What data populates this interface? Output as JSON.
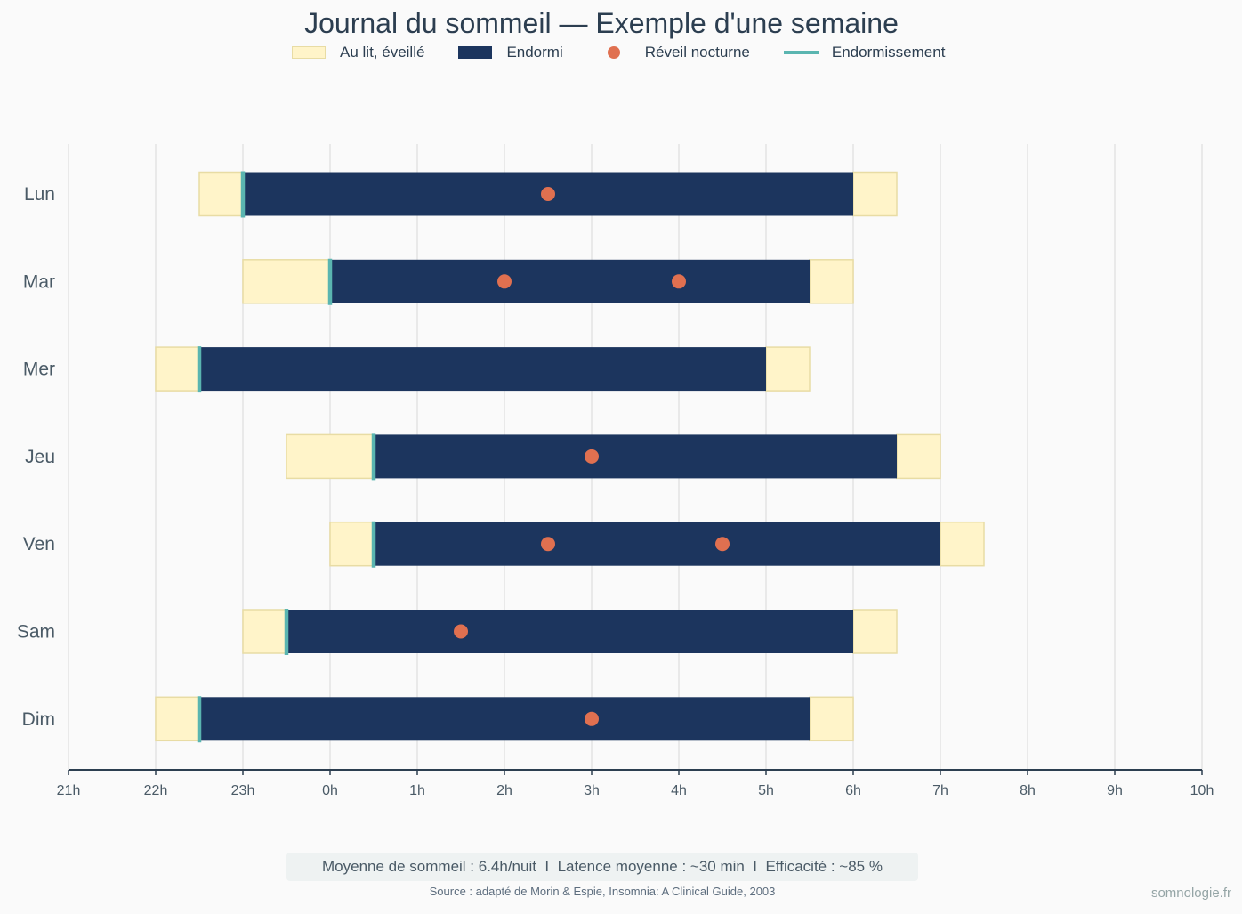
{
  "title": "Journal du sommeil — Exemple d'une semaine",
  "legend": {
    "in_bed_awake": "Au lit, éveillé",
    "asleep": "Endormi",
    "night_waking": "Réveil nocturne",
    "sleep_onset": "Endormissement"
  },
  "colors": {
    "in_bed_awake_fill": "#fff4c9",
    "in_bed_awake_stroke": "#e8dca4",
    "asleep": "#1c355e",
    "night_waking": "#e07050",
    "sleep_onset": "#5ab5b0",
    "grid": "#e3e3e3",
    "axis": "#2c3e50",
    "label": "#4a5a66"
  },
  "chart_data": {
    "type": "gantt",
    "title": "Journal du sommeil — Exemple d'une semaine",
    "x_unit": "heure",
    "x_tick_labels": [
      "21h",
      "22h",
      "23h",
      "0h",
      "1h",
      "2h",
      "3h",
      "4h",
      "5h",
      "6h",
      "7h",
      "8h",
      "9h",
      "10h"
    ],
    "xlim": [
      "21h",
      "10h"
    ],
    "grid": true,
    "legend_position": "top-center",
    "rows": [
      {
        "day": "Lun",
        "bed": "22:30",
        "sleep_onset": "23:00",
        "wake": "6:00",
        "out_of_bed": "6:30",
        "night_wakings": [
          "2:30"
        ]
      },
      {
        "day": "Mar",
        "bed": "23:00",
        "sleep_onset": "0:00",
        "wake": "5:30",
        "out_of_bed": "6:00",
        "night_wakings": [
          "2:00",
          "4:00"
        ]
      },
      {
        "day": "Mer",
        "bed": "22:00",
        "sleep_onset": "22:30",
        "wake": "5:00",
        "out_of_bed": "5:30",
        "night_wakings": []
      },
      {
        "day": "Jeu",
        "bed": "23:30",
        "sleep_onset": "0:30",
        "wake": "6:30",
        "out_of_bed": "7:00",
        "night_wakings": [
          "3:00"
        ]
      },
      {
        "day": "Ven",
        "bed": "0:00",
        "sleep_onset": "0:30",
        "wake": "7:00",
        "out_of_bed": "7:30",
        "night_wakings": [
          "2:30",
          "4:30"
        ]
      },
      {
        "day": "Sam",
        "bed": "23:00",
        "sleep_onset": "23:30",
        "wake": "6:00",
        "out_of_bed": "6:30",
        "night_wakings": [
          "1:30"
        ]
      },
      {
        "day": "Dim",
        "bed": "22:00",
        "sleep_onset": "22:30",
        "wake": "5:30",
        "out_of_bed": "6:00",
        "night_wakings": [
          "3:00"
        ]
      }
    ]
  },
  "summary": "Moyenne de sommeil : 6.4h/nuit  I  Latence moyenne : ~30 min  I  Efficacité : ~85 %",
  "source": "Source : adapté de Morin & Espie, Insomnia: A Clinical Guide, 2003",
  "brand": "somnologie.fr"
}
